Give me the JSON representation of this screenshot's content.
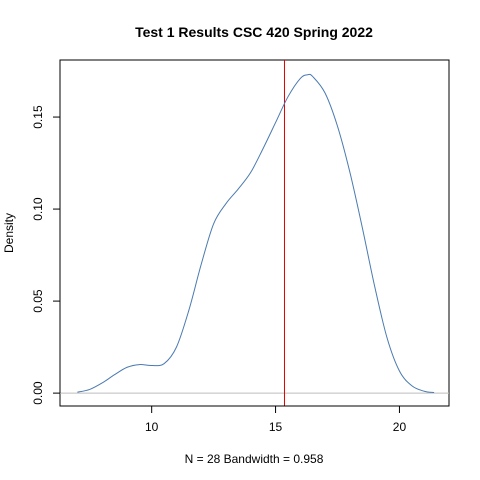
{
  "chart_data": {
    "type": "line",
    "title": "Test 1 Results CSC 420 Spring 2022",
    "xlabel": "N = 28   Bandwidth = 0.958",
    "ylabel": "Density",
    "xlim": [
      6.3,
      22.0
    ],
    "ylim": [
      -0.007,
      0.181
    ],
    "x_ticks": [
      10,
      15,
      20
    ],
    "y_ticks": [
      0.0,
      0.05,
      0.1,
      0.15
    ],
    "x_tick_labels": [
      "10",
      "15",
      "20"
    ],
    "y_tick_labels": [
      "0.00",
      "0.05",
      "0.10",
      "0.15"
    ],
    "grid": false,
    "series": [
      {
        "color": "#4a7ab0",
        "x": [
          7.0,
          7.5,
          8.0,
          8.5,
          9.0,
          9.5,
          10.0,
          10.5,
          11.0,
          11.5,
          12.0,
          12.5,
          13.0,
          13.5,
          14.0,
          14.5,
          15.0,
          15.5,
          16.0,
          16.3,
          16.5,
          17.0,
          17.5,
          18.0,
          18.5,
          19.0,
          19.5,
          20.0,
          20.5,
          21.0,
          21.4
        ],
        "y": [
          0.0005,
          0.002,
          0.0055,
          0.01,
          0.014,
          0.0155,
          0.015,
          0.016,
          0.025,
          0.045,
          0.07,
          0.092,
          0.103,
          0.111,
          0.12,
          0.133,
          0.147,
          0.161,
          0.171,
          0.173,
          0.172,
          0.163,
          0.145,
          0.12,
          0.09,
          0.058,
          0.03,
          0.012,
          0.004,
          0.001,
          0.0003
        ]
      }
    ],
    "reference_lines": [
      {
        "orientation": "horizontal",
        "y": 0,
        "color": "#bebebe"
      },
      {
        "orientation": "vertical",
        "x": 15.36,
        "color": "#e00000"
      }
    ]
  }
}
